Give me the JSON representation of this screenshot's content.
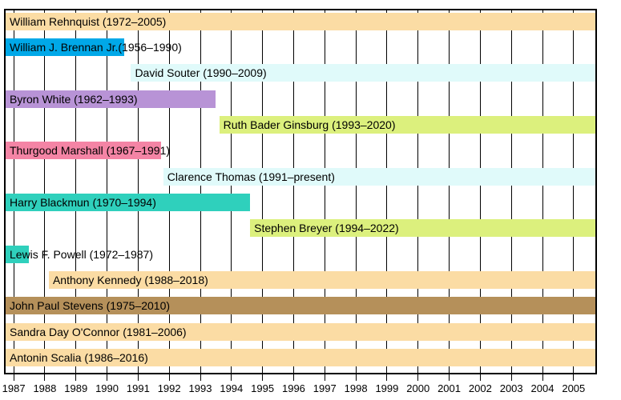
{
  "chart_data": {
    "type": "bar",
    "subtype": "gantt-timeline",
    "title": "",
    "description": "Horizontal timeline (Gantt-style) of U.S. Supreme Court justices and their tenures, visible window 1987-2005",
    "xlim": [
      1986.74,
      2005.7
    ],
    "x_ticks": [
      "1987",
      "1988",
      "1989",
      "1990",
      "1991",
      "1992",
      "1993",
      "1994",
      "1995",
      "1996",
      "1997",
      "1998",
      "1999",
      "2000",
      "2001",
      "2002",
      "2003",
      "2004",
      "2005"
    ],
    "x_tick_years": [
      1987,
      1988,
      1989,
      1990,
      1991,
      1992,
      1993,
      1994,
      1995,
      1996,
      1997,
      1998,
      1999,
      2000,
      2001,
      2002,
      2003,
      2004,
      2005
    ],
    "grid": "vertical yearly lines, drawn behind bars",
    "legend": "none",
    "rows": [
      {
        "label": "William Rehnquist (1972–2005)",
        "bar_start": 1986.74,
        "bar_end": 2005.7,
        "color": "#FBDCA4"
      },
      {
        "label": "William J. Brennan Jr.(1956–1990)",
        "bar_start": 1986.74,
        "bar_end": 1990.55,
        "color": "#00A8E8"
      },
      {
        "label": "David Souter (1990–2009)",
        "bar_start": 1990.77,
        "bar_end": 2005.7,
        "color": "#E0FAFA"
      },
      {
        "label": "Byron White (1962–1993)",
        "bar_start": 1986.74,
        "bar_end": 1993.49,
        "color": "#B893D6"
      },
      {
        "label": "Ruth Bader Ginsburg (1993–2020)",
        "bar_start": 1993.61,
        "bar_end": 2005.7,
        "color": "#DCF07D"
      },
      {
        "label": "Thurgood Marshall (1967–1991)",
        "bar_start": 1986.74,
        "bar_end": 1991.75,
        "color": "#F484A5"
      },
      {
        "label": "Clarence Thomas (1991–present)",
        "bar_start": 1991.81,
        "bar_end": 2005.7,
        "color": "#E0FAFA"
      },
      {
        "label": "Harry Blackmun (1970–1994)",
        "bar_start": 1986.74,
        "bar_end": 1994.59,
        "color": "#2FD0BC"
      },
      {
        "label": "Stephen Breyer (1994–2022)",
        "bar_start": 1994.6,
        "bar_end": 2005.7,
        "color": "#DCF07D"
      },
      {
        "label": "Lewis F. Powell (1972–1987)",
        "bar_start": 1986.74,
        "bar_end": 1987.49,
        "color": "#2FD0BC"
      },
      {
        "label": "Anthony Kennedy (1988–2018)",
        "bar_start": 1988.13,
        "bar_end": 2005.7,
        "color": "#FBDCA4"
      },
      {
        "label": "John Paul Stevens (1975–2010)",
        "bar_start": 1986.74,
        "bar_end": 2005.7,
        "color": "#B5905A"
      },
      {
        "label": "Sandra Day O'Connor (1981–2006)",
        "bar_start": 1986.74,
        "bar_end": 2005.7,
        "color": "#FBDCA4"
      },
      {
        "label": "Antonin Scalia (1986–2016)",
        "bar_start": 1986.74,
        "bar_end": 2005.7,
        "color": "#FBDCA4"
      }
    ],
    "colors": {
      "background": "#FFFFFF",
      "border": "#000000",
      "grid": "#000000",
      "text": "#000000"
    }
  }
}
